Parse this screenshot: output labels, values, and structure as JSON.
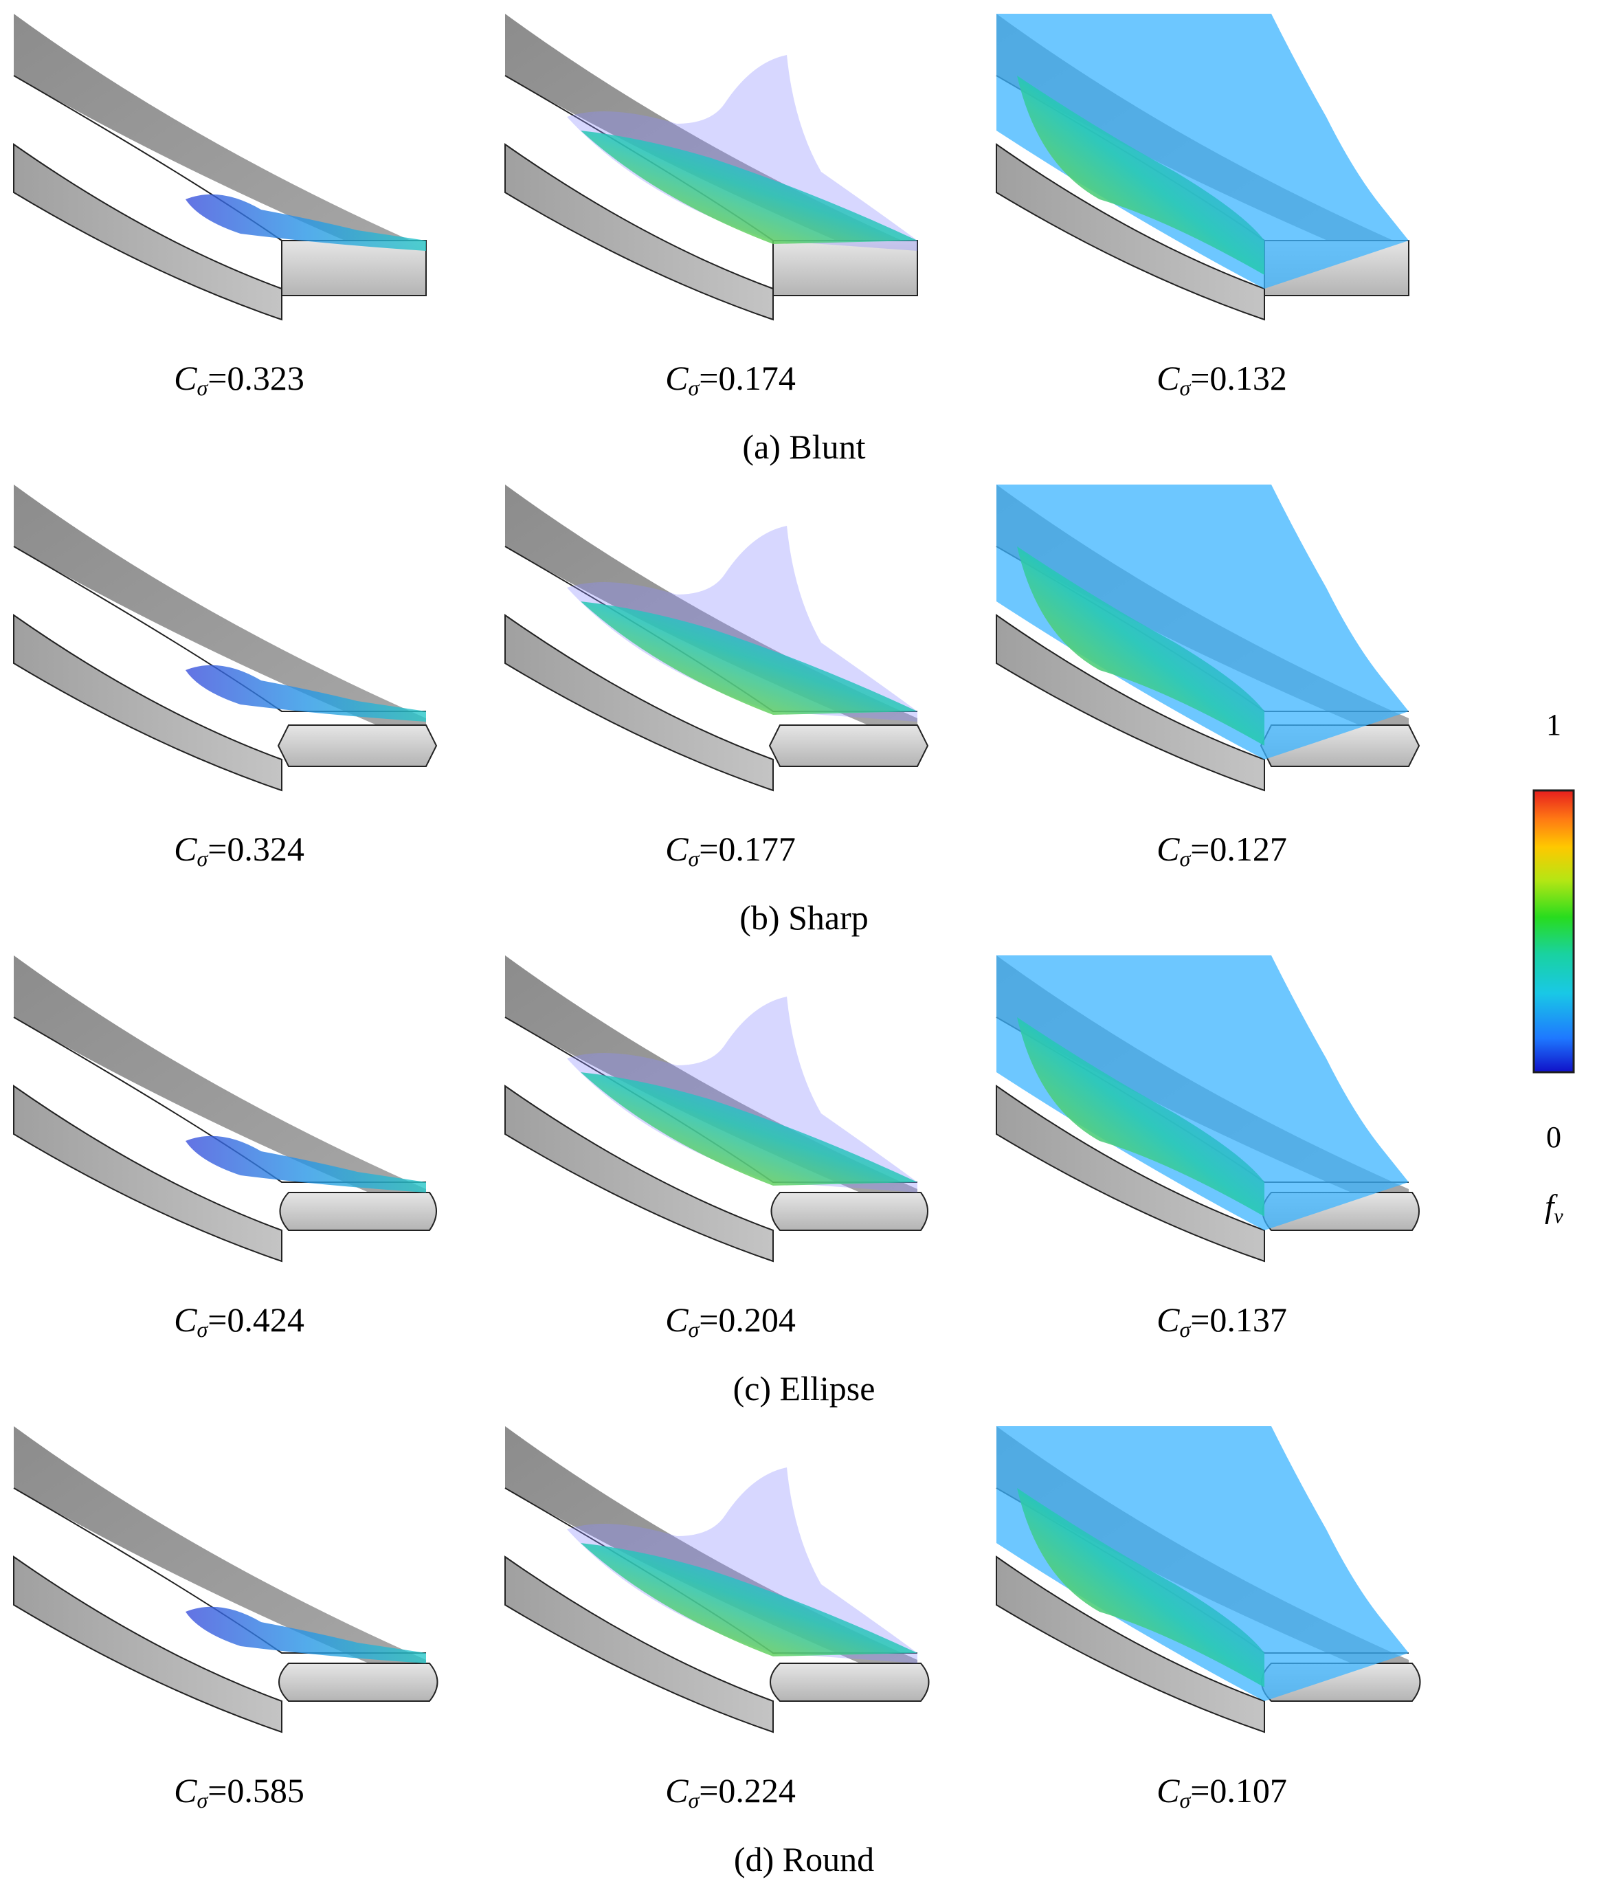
{
  "rows": [
    {
      "label": "(a) Blunt",
      "edge": "blunt",
      "panels": [
        {
          "value": "0.323",
          "stage": 1
        },
        {
          "value": "0.174",
          "stage": 2
        },
        {
          "value": "0.132",
          "stage": 3
        }
      ]
    },
    {
      "label": "(b) Sharp",
      "edge": "sharp",
      "panels": [
        {
          "value": "0.324",
          "stage": 1
        },
        {
          "value": "0.177",
          "stage": 2
        },
        {
          "value": "0.127",
          "stage": 3
        }
      ]
    },
    {
      "label": "(c) Ellipse",
      "edge": "ellipse",
      "panels": [
        {
          "value": "0.424",
          "stage": 1
        },
        {
          "value": "0.204",
          "stage": 2
        },
        {
          "value": "0.137",
          "stage": 3
        }
      ]
    },
    {
      "label": "(d) Round",
      "edge": "round",
      "panels": [
        {
          "value": "0.585",
          "stage": 1
        },
        {
          "value": "0.224",
          "stage": 2
        },
        {
          "value": "0.107",
          "stage": 3
        }
      ]
    }
  ],
  "caption_symbol": "C",
  "caption_subscript": "σ",
  "caption_equals": "=",
  "colorbar": {
    "max_label": "1",
    "min_label": "0",
    "variable": "f",
    "variable_subscript": "v",
    "colors": [
      "#1010c8",
      "#1e78ff",
      "#19c8e6",
      "#19d2a0",
      "#28dc1e",
      "#b4e614",
      "#ffc800",
      "#ff7814",
      "#e61e1e"
    ]
  },
  "colors": {
    "hydrofoil_top": "#9a9a9a",
    "hydrofoil_side": "#b8b8b8",
    "edge_face": "#d2d2d2",
    "cavity_blue": "#3c78ff",
    "cavity_cyan": "#28c8c8",
    "cavity_green": "#50d250",
    "cavity_orange": "#f08c46"
  }
}
